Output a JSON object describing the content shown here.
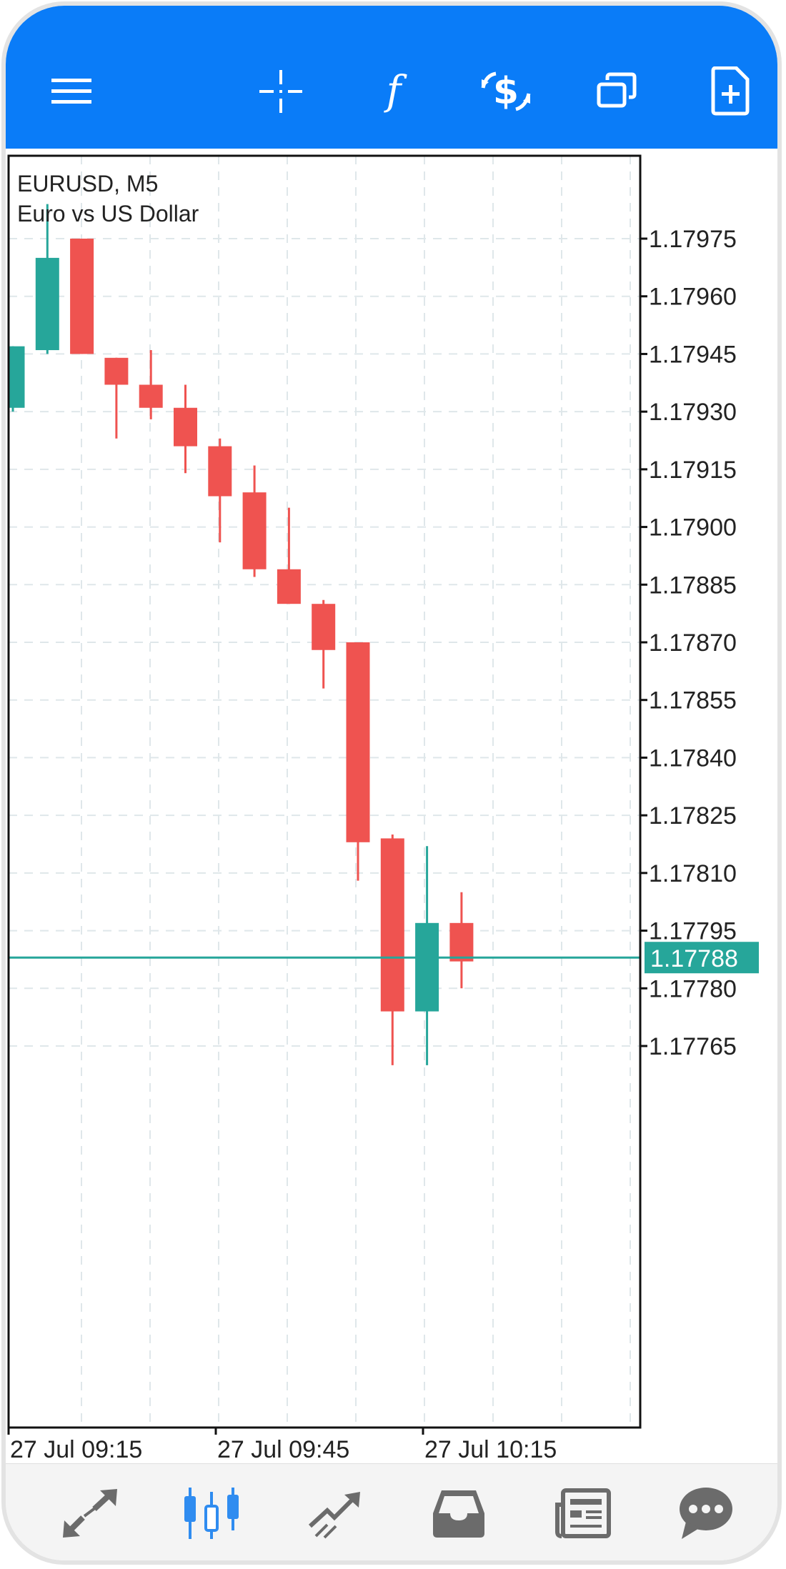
{
  "toolbar": {
    "icons": [
      "menu-icon",
      "crosshair-icon",
      "function-icon",
      "trade-dollar-icon",
      "windows-icon",
      "new-object-icon"
    ],
    "color": "#0a7cf8"
  },
  "symbol": {
    "name": "EURUSD, M5",
    "description": "Euro vs US Dollar"
  },
  "current_price": "1.17788",
  "chart_data": {
    "type": "candlestick",
    "price_ticks": [
      "1.17975",
      "1.17960",
      "1.17945",
      "1.17930",
      "1.17915",
      "1.17900",
      "1.17885",
      "1.17870",
      "1.17855",
      "1.17840",
      "1.17825",
      "1.17810",
      "1.17795",
      "1.17780",
      "1.17765"
    ],
    "time_ticks": [
      "27 Jul 09:15",
      "27 Jul 09:45",
      "27 Jul 10:15"
    ],
    "bid_line": 1.17788,
    "colors": {
      "up": "#26a69a",
      "down": "#ef5350",
      "bid": "#26a69a",
      "grid": "#dfe7ea"
    },
    "candles": [
      {
        "o": 1.17931,
        "h": 1.17947,
        "l": 1.1793,
        "c": 1.17947,
        "dir": "up"
      },
      {
        "o": 1.17946,
        "h": 1.17984,
        "l": 1.17945,
        "c": 1.1797,
        "dir": "up"
      },
      {
        "o": 1.17975,
        "h": 1.17975,
        "l": 1.17945,
        "c": 1.17945,
        "dir": "down"
      },
      {
        "o": 1.17944,
        "h": 1.17944,
        "l": 1.17923,
        "c": 1.17937,
        "dir": "down"
      },
      {
        "o": 1.17937,
        "h": 1.17946,
        "l": 1.17928,
        "c": 1.17931,
        "dir": "down"
      },
      {
        "o": 1.17931,
        "h": 1.17937,
        "l": 1.17914,
        "c": 1.17921,
        "dir": "down"
      },
      {
        "o": 1.17921,
        "h": 1.17923,
        "l": 1.17896,
        "c": 1.17908,
        "dir": "down"
      },
      {
        "o": 1.17909,
        "h": 1.17916,
        "l": 1.17887,
        "c": 1.17889,
        "dir": "down"
      },
      {
        "o": 1.17889,
        "h": 1.17905,
        "l": 1.1788,
        "c": 1.1788,
        "dir": "down"
      },
      {
        "o": 1.1788,
        "h": 1.17881,
        "l": 1.17858,
        "c": 1.17868,
        "dir": "down"
      },
      {
        "o": 1.1787,
        "h": 1.1787,
        "l": 1.17808,
        "c": 1.17818,
        "dir": "down"
      },
      {
        "o": 1.17819,
        "h": 1.1782,
        "l": 1.1776,
        "c": 1.17774,
        "dir": "down"
      },
      {
        "o": 1.17774,
        "h": 1.17817,
        "l": 1.1776,
        "c": 1.17797,
        "dir": "up"
      },
      {
        "o": 1.17797,
        "h": 1.17805,
        "l": 1.1778,
        "c": 1.17787,
        "dir": "down"
      }
    ]
  },
  "bottom_nav": {
    "icons": [
      "quotes-icon",
      "chart-icon",
      "trade-icon",
      "history-icon",
      "news-icon",
      "chat-icon"
    ],
    "active_color": "#2f8cf0",
    "inactive_color": "#6b6b6b"
  }
}
